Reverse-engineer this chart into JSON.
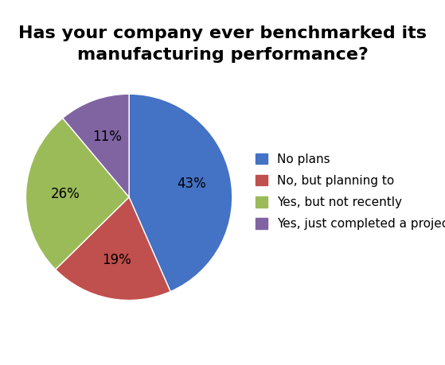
{
  "title": "Has your company ever benchmarked its\nmanufacturing performance?",
  "labels": [
    "No plans",
    "No, but planning to",
    "Yes, but not recently",
    "Yes, just completed a project"
  ],
  "values": [
    43,
    19,
    26,
    11
  ],
  "colors": [
    "#4472C4",
    "#C0504D",
    "#9BBB59",
    "#8064A2"
  ],
  "autopct_labels": [
    "43%",
    "19%",
    "26%",
    "11%"
  ],
  "title_fontsize": 16,
  "legend_fontsize": 11,
  "autopct_fontsize": 12,
  "background_color": "#ffffff",
  "startangle": 90
}
